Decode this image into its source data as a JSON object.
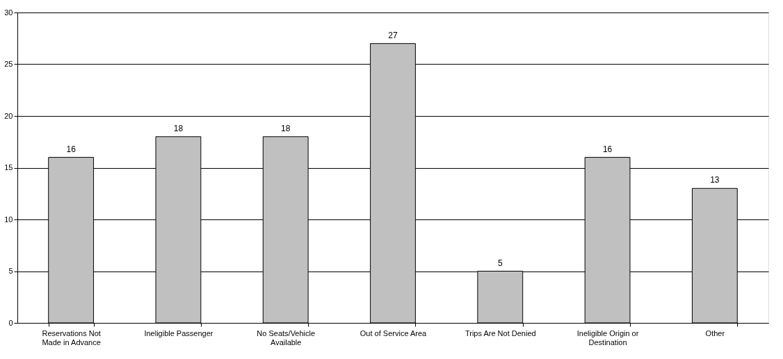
{
  "chart_data": {
    "type": "bar",
    "categories": [
      "Reservations Not Made in Advance",
      "Ineligible Passenger",
      "No Seats/Vehicle Available",
      "Out of Service Area",
      "Trips Are Not Denied",
      "Ineligible Origin or Destination",
      "Other"
    ],
    "values": [
      16,
      18,
      18,
      27,
      5,
      16,
      13
    ],
    "color": "#c0c0c0",
    "ylim": [
      0,
      30
    ],
    "yticks": [
      0,
      5,
      10,
      15,
      20,
      25,
      30
    ],
    "grid": "y",
    "data_labels": true
  }
}
